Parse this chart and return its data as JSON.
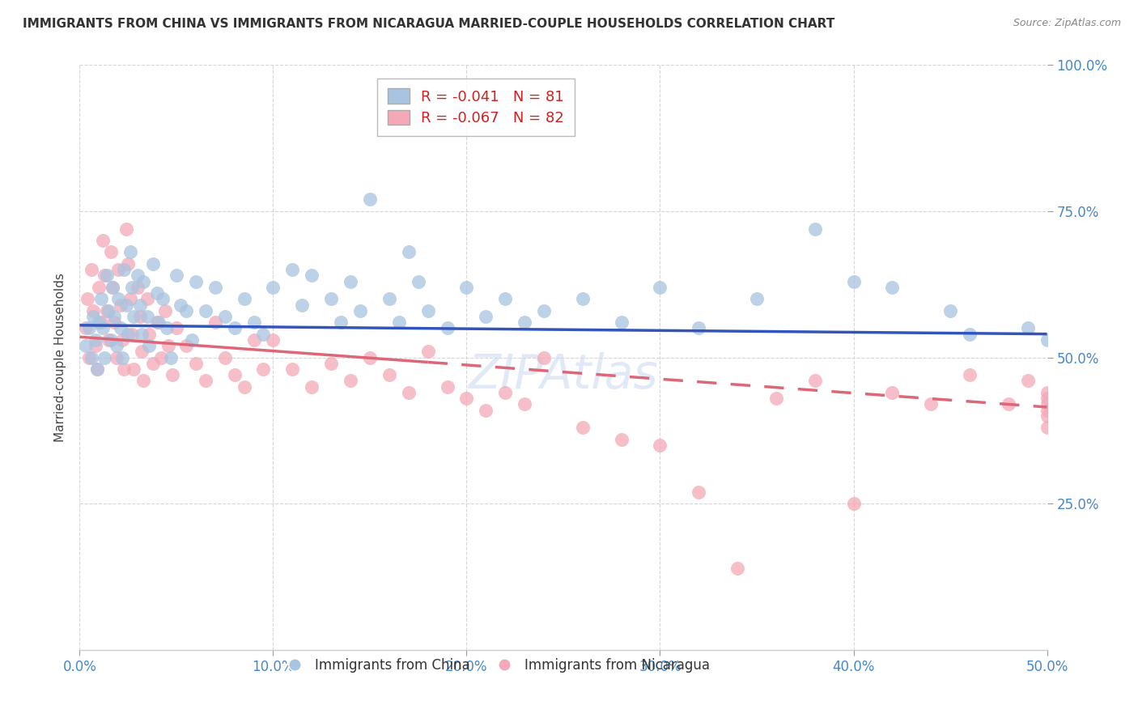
{
  "title": "IMMIGRANTS FROM CHINA VS IMMIGRANTS FROM NICARAGUA MARRIED-COUPLE HOUSEHOLDS CORRELATION CHART",
  "source": "Source: ZipAtlas.com",
  "xlabel_ticks": [
    "0.0%",
    "10.0%",
    "20.0%",
    "30.0%",
    "40.0%",
    "50.0%"
  ],
  "xlabel_vals": [
    0.0,
    0.1,
    0.2,
    0.3,
    0.4,
    0.5
  ],
  "ylabel_right_ticks": [
    "100.0%",
    "75.0%",
    "50.0%",
    "25.0%"
  ],
  "ylabel_right_vals": [
    1.0,
    0.75,
    0.5,
    0.25
  ],
  "xlim": [
    0.0,
    0.5
  ],
  "ylim": [
    0.0,
    1.0
  ],
  "china_R": -0.041,
  "china_N": 81,
  "nicaragua_R": -0.067,
  "nicaragua_N": 82,
  "china_color": "#a8c4e0",
  "nicaragua_color": "#f4a8b8",
  "china_line_color": "#3355bb",
  "nicaragua_line_color": "#dd6677",
  "ylabel": "Married-couple Households",
  "watermark": "ZIPAtlas",
  "legend_label_china": "Immigrants from China",
  "legend_label_nicaragua": "Immigrants from Nicaragua",
  "china_line_y0": 0.555,
  "china_line_y1": 0.54,
  "nicaragua_line_y0": 0.535,
  "nicaragua_line_y1": 0.415,
  "china_scatter_x": [
    0.003,
    0.005,
    0.006,
    0.007,
    0.008,
    0.009,
    0.01,
    0.011,
    0.012,
    0.013,
    0.014,
    0.015,
    0.016,
    0.017,
    0.018,
    0.019,
    0.02,
    0.021,
    0.022,
    0.023,
    0.024,
    0.025,
    0.026,
    0.027,
    0.028,
    0.03,
    0.031,
    0.032,
    0.033,
    0.035,
    0.036,
    0.038,
    0.04,
    0.041,
    0.043,
    0.045,
    0.047,
    0.05,
    0.052,
    0.055,
    0.058,
    0.06,
    0.065,
    0.07,
    0.075,
    0.08,
    0.085,
    0.09,
    0.095,
    0.1,
    0.11,
    0.115,
    0.12,
    0.13,
    0.135,
    0.14,
    0.145,
    0.15,
    0.16,
    0.165,
    0.17,
    0.175,
    0.18,
    0.19,
    0.2,
    0.21,
    0.22,
    0.23,
    0.24,
    0.26,
    0.28,
    0.3,
    0.32,
    0.35,
    0.38,
    0.4,
    0.42,
    0.45,
    0.46,
    0.49,
    0.5
  ],
  "china_scatter_y": [
    0.52,
    0.55,
    0.5,
    0.57,
    0.53,
    0.48,
    0.56,
    0.6,
    0.55,
    0.5,
    0.64,
    0.58,
    0.53,
    0.62,
    0.57,
    0.52,
    0.6,
    0.55,
    0.5,
    0.65,
    0.59,
    0.54,
    0.68,
    0.62,
    0.57,
    0.64,
    0.59,
    0.54,
    0.63,
    0.57,
    0.52,
    0.66,
    0.61,
    0.56,
    0.6,
    0.55,
    0.5,
    0.64,
    0.59,
    0.58,
    0.53,
    0.63,
    0.58,
    0.62,
    0.57,
    0.55,
    0.6,
    0.56,
    0.54,
    0.62,
    0.65,
    0.59,
    0.64,
    0.6,
    0.56,
    0.63,
    0.58,
    0.77,
    0.6,
    0.56,
    0.68,
    0.63,
    0.58,
    0.55,
    0.62,
    0.57,
    0.6,
    0.56,
    0.58,
    0.6,
    0.56,
    0.62,
    0.55,
    0.6,
    0.72,
    0.63,
    0.62,
    0.58,
    0.54,
    0.55,
    0.53
  ],
  "nicaragua_scatter_x": [
    0.003,
    0.004,
    0.005,
    0.006,
    0.007,
    0.008,
    0.009,
    0.01,
    0.011,
    0.012,
    0.013,
    0.014,
    0.015,
    0.016,
    0.017,
    0.018,
    0.019,
    0.02,
    0.021,
    0.022,
    0.023,
    0.024,
    0.025,
    0.026,
    0.027,
    0.028,
    0.03,
    0.031,
    0.032,
    0.033,
    0.035,
    0.036,
    0.038,
    0.04,
    0.042,
    0.044,
    0.046,
    0.048,
    0.05,
    0.055,
    0.06,
    0.065,
    0.07,
    0.075,
    0.08,
    0.085,
    0.09,
    0.095,
    0.1,
    0.11,
    0.12,
    0.13,
    0.14,
    0.15,
    0.16,
    0.17,
    0.18,
    0.19,
    0.2,
    0.21,
    0.22,
    0.23,
    0.24,
    0.26,
    0.28,
    0.3,
    0.32,
    0.34,
    0.36,
    0.38,
    0.4,
    0.42,
    0.44,
    0.46,
    0.48,
    0.49,
    0.5,
    0.5,
    0.5,
    0.5,
    0.5,
    0.5
  ],
  "nicaragua_scatter_y": [
    0.55,
    0.6,
    0.5,
    0.65,
    0.58,
    0.52,
    0.48,
    0.62,
    0.56,
    0.7,
    0.64,
    0.58,
    0.53,
    0.68,
    0.62,
    0.56,
    0.5,
    0.65,
    0.59,
    0.53,
    0.48,
    0.72,
    0.66,
    0.6,
    0.54,
    0.48,
    0.62,
    0.57,
    0.51,
    0.46,
    0.6,
    0.54,
    0.49,
    0.56,
    0.5,
    0.58,
    0.52,
    0.47,
    0.55,
    0.52,
    0.49,
    0.46,
    0.56,
    0.5,
    0.47,
    0.45,
    0.53,
    0.48,
    0.53,
    0.48,
    0.45,
    0.49,
    0.46,
    0.5,
    0.47,
    0.44,
    0.51,
    0.45,
    0.43,
    0.41,
    0.44,
    0.42,
    0.5,
    0.38,
    0.36,
    0.35,
    0.27,
    0.14,
    0.43,
    0.46,
    0.25,
    0.44,
    0.42,
    0.47,
    0.42,
    0.46,
    0.43,
    0.44,
    0.41,
    0.4,
    0.42,
    0.38
  ]
}
